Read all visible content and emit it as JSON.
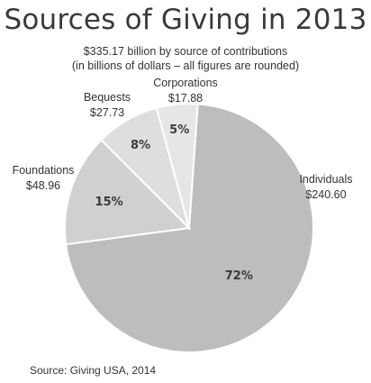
{
  "chart_data": {
    "type": "pie",
    "title": "Sources of Giving in 2013",
    "subtitle": [
      "$335.17 billion by source of contributions",
      "(in billions of dollars – all figures are rounded)"
    ],
    "slices": [
      {
        "label": "Individuals",
        "value": 240.6,
        "value_label": "$240.60",
        "percent_label": "72%",
        "color": "#bdbdbd"
      },
      {
        "label": "Foundations",
        "value": 48.96,
        "value_label": "$48.96",
        "percent_label": "15%",
        "color": "#d0d0d0"
      },
      {
        "label": "Bequests",
        "value": 27.73,
        "value_label": "$27.73",
        "percent_label": "8%",
        "color": "#dedede"
      },
      {
        "label": "Corporations",
        "value": 17.88,
        "value_label": "$17.88",
        "percent_label": "5%",
        "color": "#e6e6e6"
      }
    ],
    "source": "Source: Giving USA, 2014"
  }
}
